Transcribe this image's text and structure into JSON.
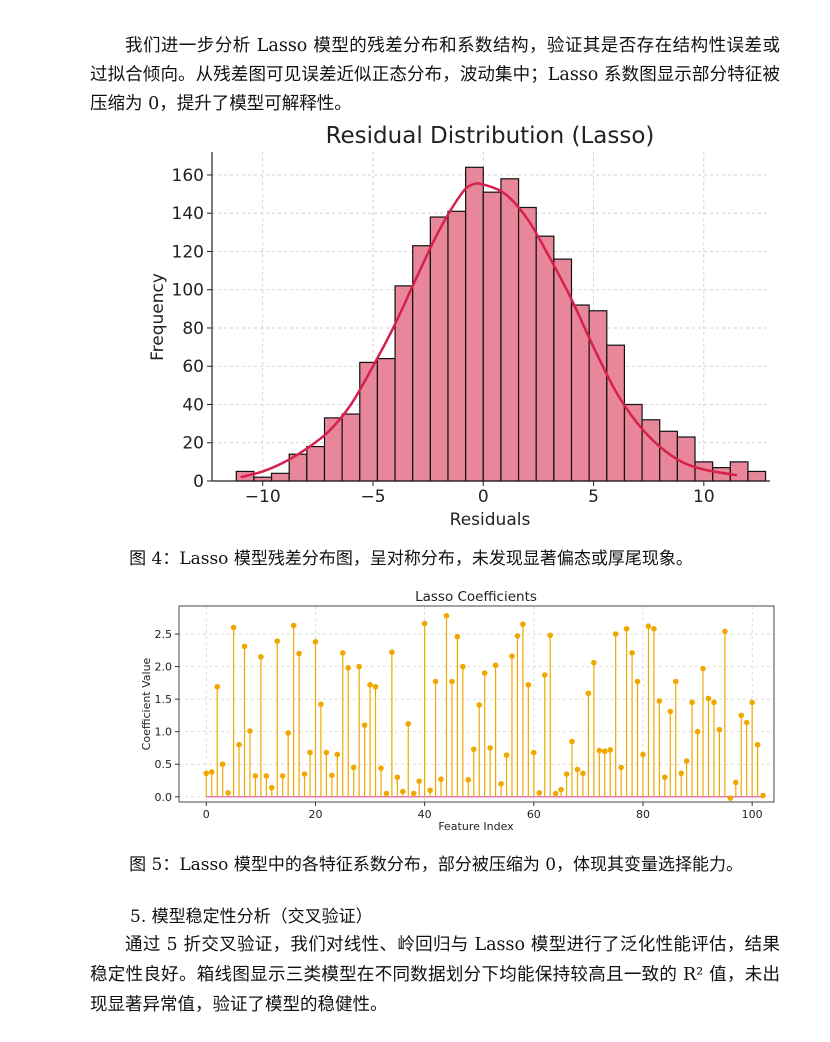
{
  "paragraphs": {
    "intro": "我们进一步分析 Lasso 模型的残差分布和系数结构，验证其是否存在结构性误差或过拟合倾向。从残差图可见误差近似正态分布，波动集中；Lasso 系数图显示部分特征被压缩为 0，提升了模型可解释性。",
    "section5_body": "通过 5 折交叉验证，我们对线性、岭回归与 Lasso 模型进行了泛化性能评估，结果稳定性良好。箱线图显示三类模型在不同数据划分下均能保持较高且一致的 R² 值，未出现显著异常值，验证了模型的稳健性。"
  },
  "captions": {
    "fig4": "图 4：Lasso 模型残差分布图，呈对称分布，未发现显著偏态或厚尾现象。",
    "fig5": "图 5：Lasso 模型中的各特征系数分布，部分被压缩为 0，体现其变量选择能力。"
  },
  "section5_heading": "5. 模型稳定性分析（交叉验证）",
  "colors": {
    "hist_fill": "#e8869a",
    "kde_line": "#d6204e",
    "stem": "#f0a800",
    "baseline": "#e377c2"
  },
  "chart_data": [
    {
      "type": "bar",
      "title": "Residual Distribution (Lasso)",
      "xlabel": "Residuals",
      "ylabel": "Frequency",
      "xlim": [
        -12.3,
        13
      ],
      "ylim": [
        0,
        172
      ],
      "xticks": [
        -10,
        -5,
        0,
        5,
        10
      ],
      "yticks": [
        0,
        20,
        40,
        60,
        80,
        100,
        120,
        140,
        160
      ],
      "grid": true,
      "bin_start": -11.2,
      "bin_width": 0.8,
      "values": [
        5,
        2,
        4,
        14,
        18,
        33,
        35,
        62,
        64,
        102,
        123,
        138,
        141,
        164,
        151,
        158,
        143,
        128,
        116,
        92,
        89,
        71,
        40,
        32,
        26,
        23,
        10,
        7,
        10,
        5
      ],
      "kde": {
        "x": [
          -11,
          -10,
          -9,
          -8,
          -7,
          -6,
          -5,
          -4,
          -3,
          -2,
          -1,
          -0.5,
          0,
          1,
          2,
          3,
          4,
          5,
          6,
          7,
          8,
          9,
          10,
          11.5
        ],
        "y": [
          2,
          5,
          10,
          17,
          26,
          40,
          60,
          82,
          107,
          131,
          150,
          155,
          155,
          150,
          137,
          117,
          95,
          70,
          47,
          30,
          18,
          10,
          6,
          3
        ]
      }
    },
    {
      "type": "scatter",
      "title": "Lasso Coefficients",
      "xlabel": "Feature Index",
      "ylabel": "Coefficient Value",
      "xlim": [
        -5,
        104
      ],
      "ylim": [
        -0.08,
        2.93
      ],
      "xticks": [
        0,
        20,
        40,
        60,
        80,
        100
      ],
      "yticks": [
        0.0,
        0.5,
        1.0,
        1.5,
        2.0,
        2.5
      ],
      "grid": true,
      "values": [
        0.36,
        0.38,
        1.69,
        0.5,
        0.06,
        2.6,
        0.8,
        2.31,
        1.01,
        0.32,
        2.15,
        0.32,
        0.14,
        2.39,
        0.32,
        0.98,
        2.63,
        2.2,
        0.35,
        0.68,
        2.38,
        1.42,
        0.68,
        0.33,
        0.65,
        2.21,
        1.98,
        0.45,
        2.0,
        1.1,
        1.72,
        1.69,
        0.44,
        0.05,
        2.22,
        0.3,
        0.08,
        1.12,
        0.05,
        0.24,
        2.66,
        0.1,
        1.77,
        0.27,
        2.78,
        1.77,
        2.46,
        2.0,
        0.26,
        0.73,
        1.41,
        1.9,
        0.75,
        2.02,
        0.2,
        0.64,
        2.16,
        2.47,
        2.65,
        1.72,
        0.68,
        0.06,
        1.87,
        2.48,
        0.05,
        0.11,
        0.35,
        0.85,
        0.42,
        0.36,
        1.59,
        2.06,
        0.71,
        0.7,
        0.72,
        2.5,
        0.45,
        2.58,
        2.21,
        1.77,
        0.65,
        2.62,
        2.58,
        1.47,
        0.3,
        1.31,
        1.77,
        0.36,
        0.55,
        1.45,
        1.0,
        1.97,
        1.51,
        1.45,
        1.03,
        2.54,
        -0.02,
        0.22,
        1.25,
        1.14,
        1.45,
        0.8,
        0.02
      ]
    }
  ]
}
